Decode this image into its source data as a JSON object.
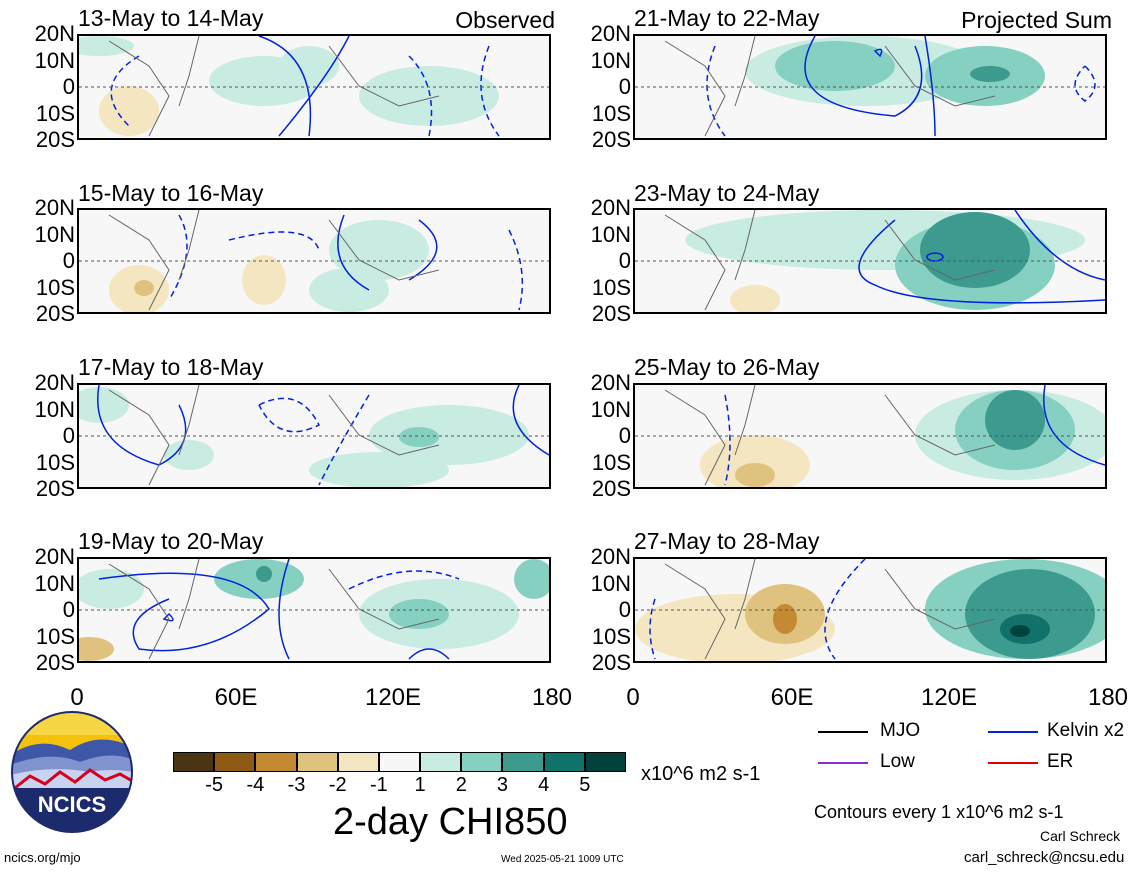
{
  "panels": [
    {
      "title": "13-May to 14-May",
      "tag": "Observed"
    },
    {
      "title": "15-May to 16-May",
      "tag": ""
    },
    {
      "title": "17-May to 18-May",
      "tag": ""
    },
    {
      "title": "19-May to 20-May",
      "tag": ""
    },
    {
      "title": "21-May to 22-May",
      "tag": "Projected Sum"
    },
    {
      "title": "23-May to 24-May",
      "tag": ""
    },
    {
      "title": "25-May to 26-May",
      "tag": ""
    },
    {
      "title": "27-May to 28-May",
      "tag": ""
    }
  ],
  "axes": {
    "lat_labels": [
      "20N",
      "10N",
      "0",
      "10S",
      "20S"
    ],
    "lon_labels": [
      "0",
      "60E",
      "120E",
      "180"
    ]
  },
  "colorbar": {
    "labels": [
      "-5",
      "-4",
      "-3",
      "-2",
      "-1",
      "1",
      "2",
      "3",
      "4",
      "5"
    ],
    "colors": [
      "#4a3411",
      "#8f5a13",
      "#c48a33",
      "#dfc27e",
      "#f5e6c2",
      "#f7f7f7",
      "#c8ebe2",
      "#86d0c1",
      "#3c9a8e",
      "#11716b",
      "#01433c"
    ],
    "units": "x10^6 m2 s-1"
  },
  "title": "2-day CHI850",
  "legend": {
    "items": [
      {
        "label": "MJO",
        "color": "#000000"
      },
      {
        "label": "Kelvin x2",
        "color": "#0022dd"
      },
      {
        "label": "Low",
        "color": "#8a2be2"
      },
      {
        "label": "ER",
        "color": "#e00000"
      }
    ],
    "contour_note": "Contours every 1 x10^6 m2 s-1"
  },
  "credits": {
    "author": "Carl Schreck",
    "email": "carl_schreck@ncsu.edu",
    "site": "ncics.org/mjo",
    "timestamp": "Wed 2025-05-21 1009 UTC",
    "logo_text": "NCICS"
  }
}
